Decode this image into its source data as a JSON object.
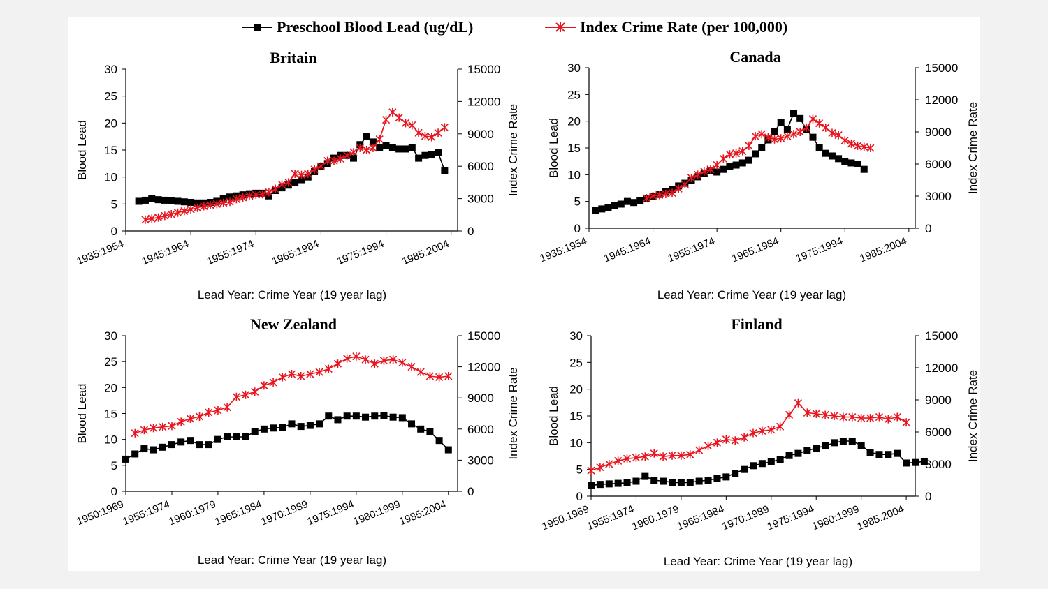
{
  "legend": {
    "lead_label": "Preschool Blood Lead (ug/dL)",
    "crime_label": "Index Crime Rate (per 100,000)"
  },
  "colors": {
    "lead": "#000000",
    "crime": "#e8141e"
  },
  "chart_data": [
    {
      "type": "line",
      "title": "Britain",
      "xlabel": "Lead Year: Crime Year (19 year lag)",
      "ylabel": "Blood Lead",
      "y2label": "Index Crime Rate",
      "ylim": [
        0,
        30
      ],
      "y2lim": [
        0,
        15000
      ],
      "yticks": [
        0,
        5,
        10,
        15,
        20,
        25,
        30
      ],
      "y2ticks": [
        0,
        3000,
        6000,
        9000,
        12000,
        15000
      ],
      "xstart": 1935,
      "xend": 1986,
      "xticks": [
        "1935:1954",
        "1945:1964",
        "1955:1974",
        "1965:1984",
        "1975:1994",
        "1985:2004"
      ],
      "series": [
        {
          "name": "Preschool Blood Lead (ug/dL)",
          "axis": "left",
          "start": 1937,
          "values": [
            5.5,
            5.7,
            6.0,
            5.8,
            5.7,
            5.6,
            5.5,
            5.4,
            5.3,
            5.2,
            5.2,
            5.3,
            5.5,
            6.0,
            6.3,
            6.5,
            6.7,
            6.9,
            7.0,
            7.0,
            6.5,
            7.5,
            8.0,
            8.5,
            9.0,
            9.5,
            10.0,
            11.0,
            12.0,
            12.5,
            13.5,
            14.0,
            14.0,
            13.5,
            16.0,
            17.5,
            16.5,
            15.5,
            15.8,
            15.5,
            15.2,
            15.2,
            15.5,
            13.5,
            14.0,
            14.2,
            14.5,
            11.2
          ]
        },
        {
          "name": "Index Crime Rate (per 100,000)",
          "axis": "right",
          "start": 1938,
          "values": [
            1050,
            1150,
            1250,
            1400,
            1550,
            1700,
            1850,
            2000,
            2150,
            2300,
            2400,
            2500,
            2600,
            2700,
            2950,
            3100,
            3250,
            3350,
            3400,
            3600,
            3900,
            4300,
            4500,
            5300,
            5200,
            5300,
            5700,
            6000,
            6500,
            6500,
            6700,
            7000,
            7300,
            7700,
            7500,
            7700,
            8500,
            10300,
            11000,
            10500,
            10000,
            9800,
            9100,
            8800,
            8700,
            9100,
            9600
          ]
        }
      ]
    },
    {
      "type": "line",
      "title": "Canada",
      "xlabel": "Lead Year: Crime Year (19 year lag)",
      "ylabel": "Blood Lead",
      "y2label": "Index Crime Rate",
      "ylim": [
        0,
        30
      ],
      "y2lim": [
        0,
        15000
      ],
      "yticks": [
        0,
        5,
        10,
        15,
        20,
        25,
        30
      ],
      "y2ticks": [
        0,
        3000,
        6000,
        9000,
        12000,
        15000
      ],
      "xstart": 1935,
      "xend": 1986,
      "xticks": [
        "1935:1954",
        "1945:1964",
        "1955:1974",
        "1965:1984",
        "1975:1994",
        "1985:2004"
      ],
      "series": [
        {
          "name": "Preschool Blood Lead (ug/dL)",
          "axis": "left",
          "start": 1936,
          "values": [
            3.3,
            3.6,
            3.9,
            4.2,
            4.5,
            5.0,
            4.8,
            5.2,
            5.6,
            5.9,
            6.3,
            6.8,
            7.3,
            7.9,
            8.4,
            9.0,
            9.6,
            10.2,
            10.8,
            10.5,
            11.0,
            11.5,
            11.8,
            12.2,
            12.7,
            13.9,
            15.0,
            16.5,
            18.0,
            19.8,
            18.5,
            21.5,
            20.5,
            18.5,
            17.0,
            15.0,
            14.0,
            13.5,
            13.0,
            12.5,
            12.2,
            12.0,
            11.0
          ]
        },
        {
          "name": "Index Crime Rate (per 100,000)",
          "axis": "right",
          "start": 1944,
          "values": [
            2800,
            3000,
            3100,
            3200,
            3300,
            3700,
            4100,
            4700,
            5000,
            5300,
            5500,
            5900,
            6500,
            6900,
            7000,
            7200,
            7700,
            8600,
            8800,
            8500,
            8300,
            8400,
            8600,
            8800,
            9000,
            9400,
            10200,
            9800,
            9400,
            8900,
            8700,
            8200,
            7900,
            7700,
            7600,
            7500
          ]
        }
      ]
    },
    {
      "type": "line",
      "title": "New Zealand",
      "xlabel": "Lead Year: Crime Year (19 year lag)",
      "ylabel": "Blood Lead",
      "y2label": "Index Crime Rate",
      "ylim": [
        0,
        30
      ],
      "y2lim": [
        0,
        15000
      ],
      "yticks": [
        0,
        5,
        10,
        15,
        20,
        25,
        30
      ],
      "y2ticks": [
        0,
        3000,
        6000,
        9000,
        12000,
        15000
      ],
      "xstart": 1950,
      "xend": 1986,
      "xticks": [
        "1950:1969",
        "1955:1974",
        "1960:1979",
        "1965:1984",
        "1970:1989",
        "1975:1994",
        "1980:1999",
        "1985:2004"
      ],
      "series": [
        {
          "name": "Preschool Blood Lead (ug/dL)",
          "axis": "left",
          "start": 1950,
          "values": [
            6.2,
            7.2,
            8.2,
            8.0,
            8.5,
            9.0,
            9.5,
            9.8,
            9.0,
            9.0,
            10.0,
            10.5,
            10.5,
            10.5,
            11.5,
            12.0,
            12.2,
            12.3,
            13.0,
            12.5,
            12.7,
            13.0,
            14.5,
            13.8,
            14.5,
            14.5,
            14.3,
            14.5,
            14.6,
            14.3,
            14.2,
            13.0,
            12.0,
            11.5,
            9.8,
            8.0
          ]
        },
        {
          "name": "Index Crime Rate (per 100,000)",
          "axis": "right",
          "start": 1951,
          "values": [
            5600,
            5900,
            6100,
            6200,
            6300,
            6700,
            7000,
            7200,
            7600,
            7800,
            8100,
            9100,
            9300,
            9600,
            10200,
            10500,
            11000,
            11300,
            11100,
            11300,
            11500,
            11800,
            12300,
            12800,
            13000,
            12700,
            12300,
            12600,
            12700,
            12400,
            12000,
            11500,
            11100,
            11000,
            11100
          ]
        }
      ]
    },
    {
      "type": "line",
      "title": "Finland",
      "xlabel": "Lead Year: Crime Year (19 year lag)",
      "ylabel": "Blood Lead",
      "y2label": "Index Crime Rate",
      "ylim": [
        0,
        30
      ],
      "y2lim": [
        0,
        15000
      ],
      "yticks": [
        0,
        5,
        10,
        15,
        20,
        25,
        30
      ],
      "y2ticks": [
        0,
        3000,
        6000,
        9000,
        12000,
        15000
      ],
      "xstart": 1950,
      "xend": 1986,
      "xticks": [
        "1950:1969",
        "1955:1974",
        "1960:1979",
        "1965:1984",
        "1970:1989",
        "1975:1994",
        "1980:1999",
        "1985:2004"
      ],
      "series": [
        {
          "name": "Preschool Blood Lead (ug/dL)",
          "axis": "left",
          "start": 1950,
          "values": [
            2.0,
            2.2,
            2.3,
            2.4,
            2.5,
            2.8,
            3.7,
            3.0,
            2.8,
            2.6,
            2.5,
            2.6,
            2.8,
            3.0,
            3.3,
            3.6,
            4.3,
            5.0,
            5.7,
            6.1,
            6.4,
            6.9,
            7.6,
            8.0,
            8.5,
            9.0,
            9.4,
            10.0,
            10.3,
            10.3,
            9.5,
            8.2,
            7.8,
            7.8,
            8.0,
            6.2,
            6.3,
            6.5
          ]
        },
        {
          "name": "Index Crime Rate (per 100,000)",
          "axis": "right",
          "start": 1950,
          "values": [
            2400,
            2700,
            3000,
            3300,
            3500,
            3600,
            3700,
            4000,
            3700,
            3800,
            3800,
            3900,
            4300,
            4700,
            5000,
            5300,
            5200,
            5500,
            5900,
            6100,
            6200,
            6500,
            7600,
            8700,
            7800,
            7700,
            7600,
            7500,
            7400,
            7400,
            7300,
            7300,
            7400,
            7200,
            7400,
            6900
          ]
        }
      ]
    }
  ]
}
